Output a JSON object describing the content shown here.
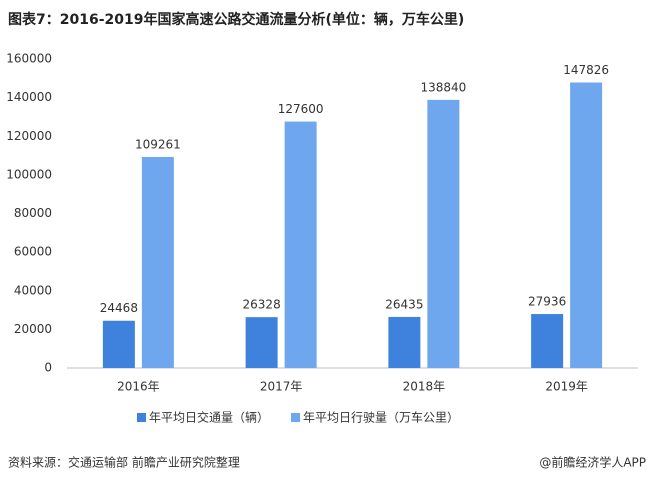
{
  "chart_data": {
    "type": "bar",
    "title": "图表7：2016-2019年国家高速公路交通流量分析(单位：辆，万车公里)",
    "categories": [
      "2016年",
      "2017年",
      "2018年",
      "2019年"
    ],
    "series": [
      {
        "name": "年平均日交通量（辆）",
        "color": "#3f82de",
        "values": [
          24468,
          26328,
          26435,
          27936
        ]
      },
      {
        "name": "年平均日行驶量（万车公里）",
        "color": "#6ea7ee",
        "values": [
          109261,
          127600,
          138840,
          147826
        ]
      }
    ],
    "ylim": [
      0,
      160000
    ],
    "yticks": [
      0,
      20000,
      40000,
      60000,
      80000,
      100000,
      120000,
      140000,
      160000
    ],
    "grid": false,
    "legend": "bottom",
    "source": "资料来源：交通运输部 前瞻产业研究院整理",
    "credit": "@前瞻经济学人APP"
  }
}
